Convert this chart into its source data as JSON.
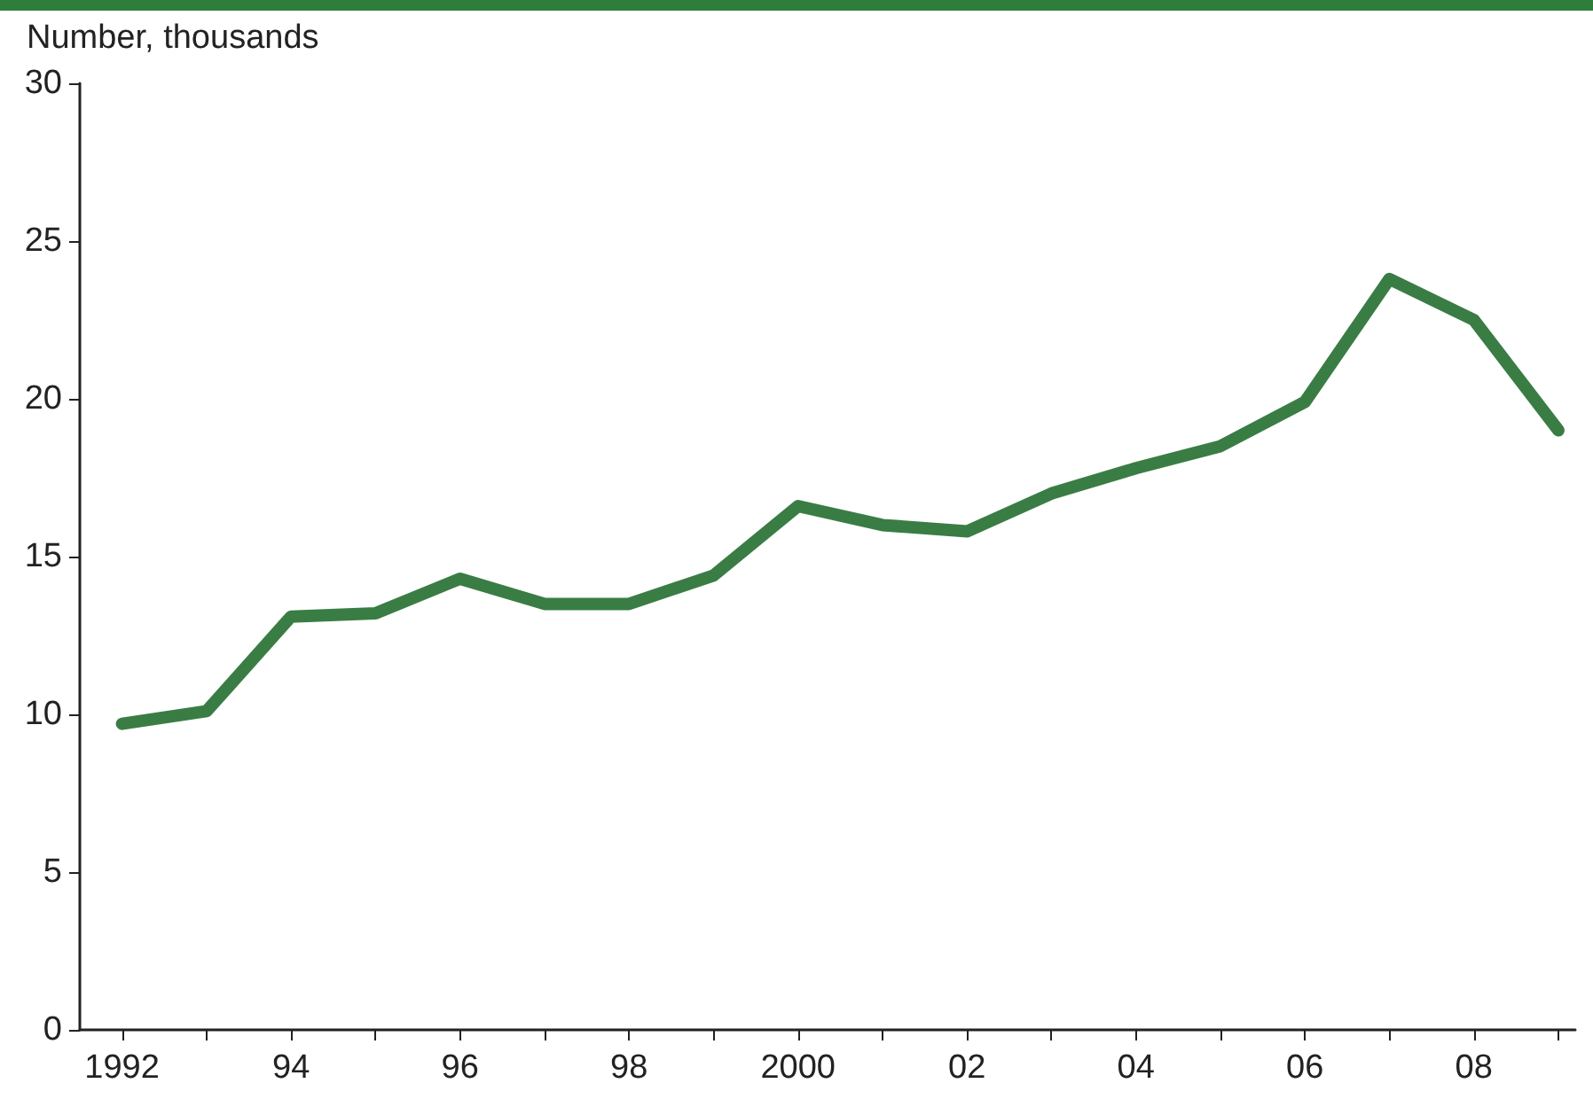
{
  "chart_data": {
    "type": "line",
    "ylabel": "Number, thousands",
    "x": [
      1992,
      1993,
      1994,
      1995,
      1996,
      1997,
      1998,
      1999,
      2000,
      2001,
      2002,
      2003,
      2004,
      2005,
      2006,
      2007,
      2008,
      2009
    ],
    "series": [
      {
        "color": "#3a7d44",
        "values": [
          9.7,
          10.1,
          13.1,
          13.2,
          14.3,
          13.5,
          13.5,
          14.4,
          16.6,
          16.0,
          15.8,
          17.0,
          17.8,
          18.5,
          19.9,
          23.8,
          22.5,
          19.0
        ]
      }
    ],
    "xlim": [
      1991.5,
      2009.2
    ],
    "xticks": [
      {
        "value": 1992,
        "label": "1992"
      },
      {
        "value": 1993,
        "label": null
      },
      {
        "value": 1994,
        "label": "94"
      },
      {
        "value": 1995,
        "label": null
      },
      {
        "value": 1996,
        "label": "96"
      },
      {
        "value": 1997,
        "label": null
      },
      {
        "value": 1998,
        "label": "98"
      },
      {
        "value": 1999,
        "label": null
      },
      {
        "value": 2000,
        "label": "2000"
      },
      {
        "value": 2001,
        "label": null
      },
      {
        "value": 2002,
        "label": "02"
      },
      {
        "value": 2003,
        "label": null
      },
      {
        "value": 2004,
        "label": "04"
      },
      {
        "value": 2005,
        "label": null
      },
      {
        "value": 2006,
        "label": "06"
      },
      {
        "value": 2007,
        "label": null
      },
      {
        "value": 2008,
        "label": "08"
      },
      {
        "value": 2009,
        "label": null
      }
    ],
    "ylim": [
      0,
      30
    ],
    "yticks": [
      0,
      5,
      10,
      15,
      20,
      25,
      30
    ],
    "grid": false,
    "marker": "none",
    "line_style": "solid"
  }
}
